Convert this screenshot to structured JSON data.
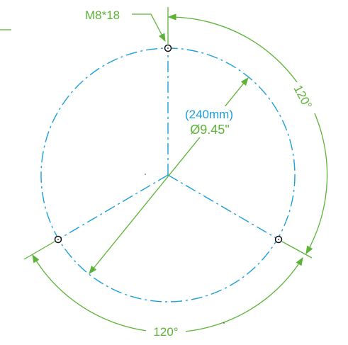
{
  "colors": {
    "circle": "#1a9fd9",
    "dimension": "#5cb338",
    "hole": "#111111"
  },
  "labels": {
    "bolt": "M8*18",
    "diameter_mm": "(240mm)",
    "diameter_in": "Ø9.45\"",
    "angle_right": "120°",
    "angle_bottom": "120°"
  }
}
